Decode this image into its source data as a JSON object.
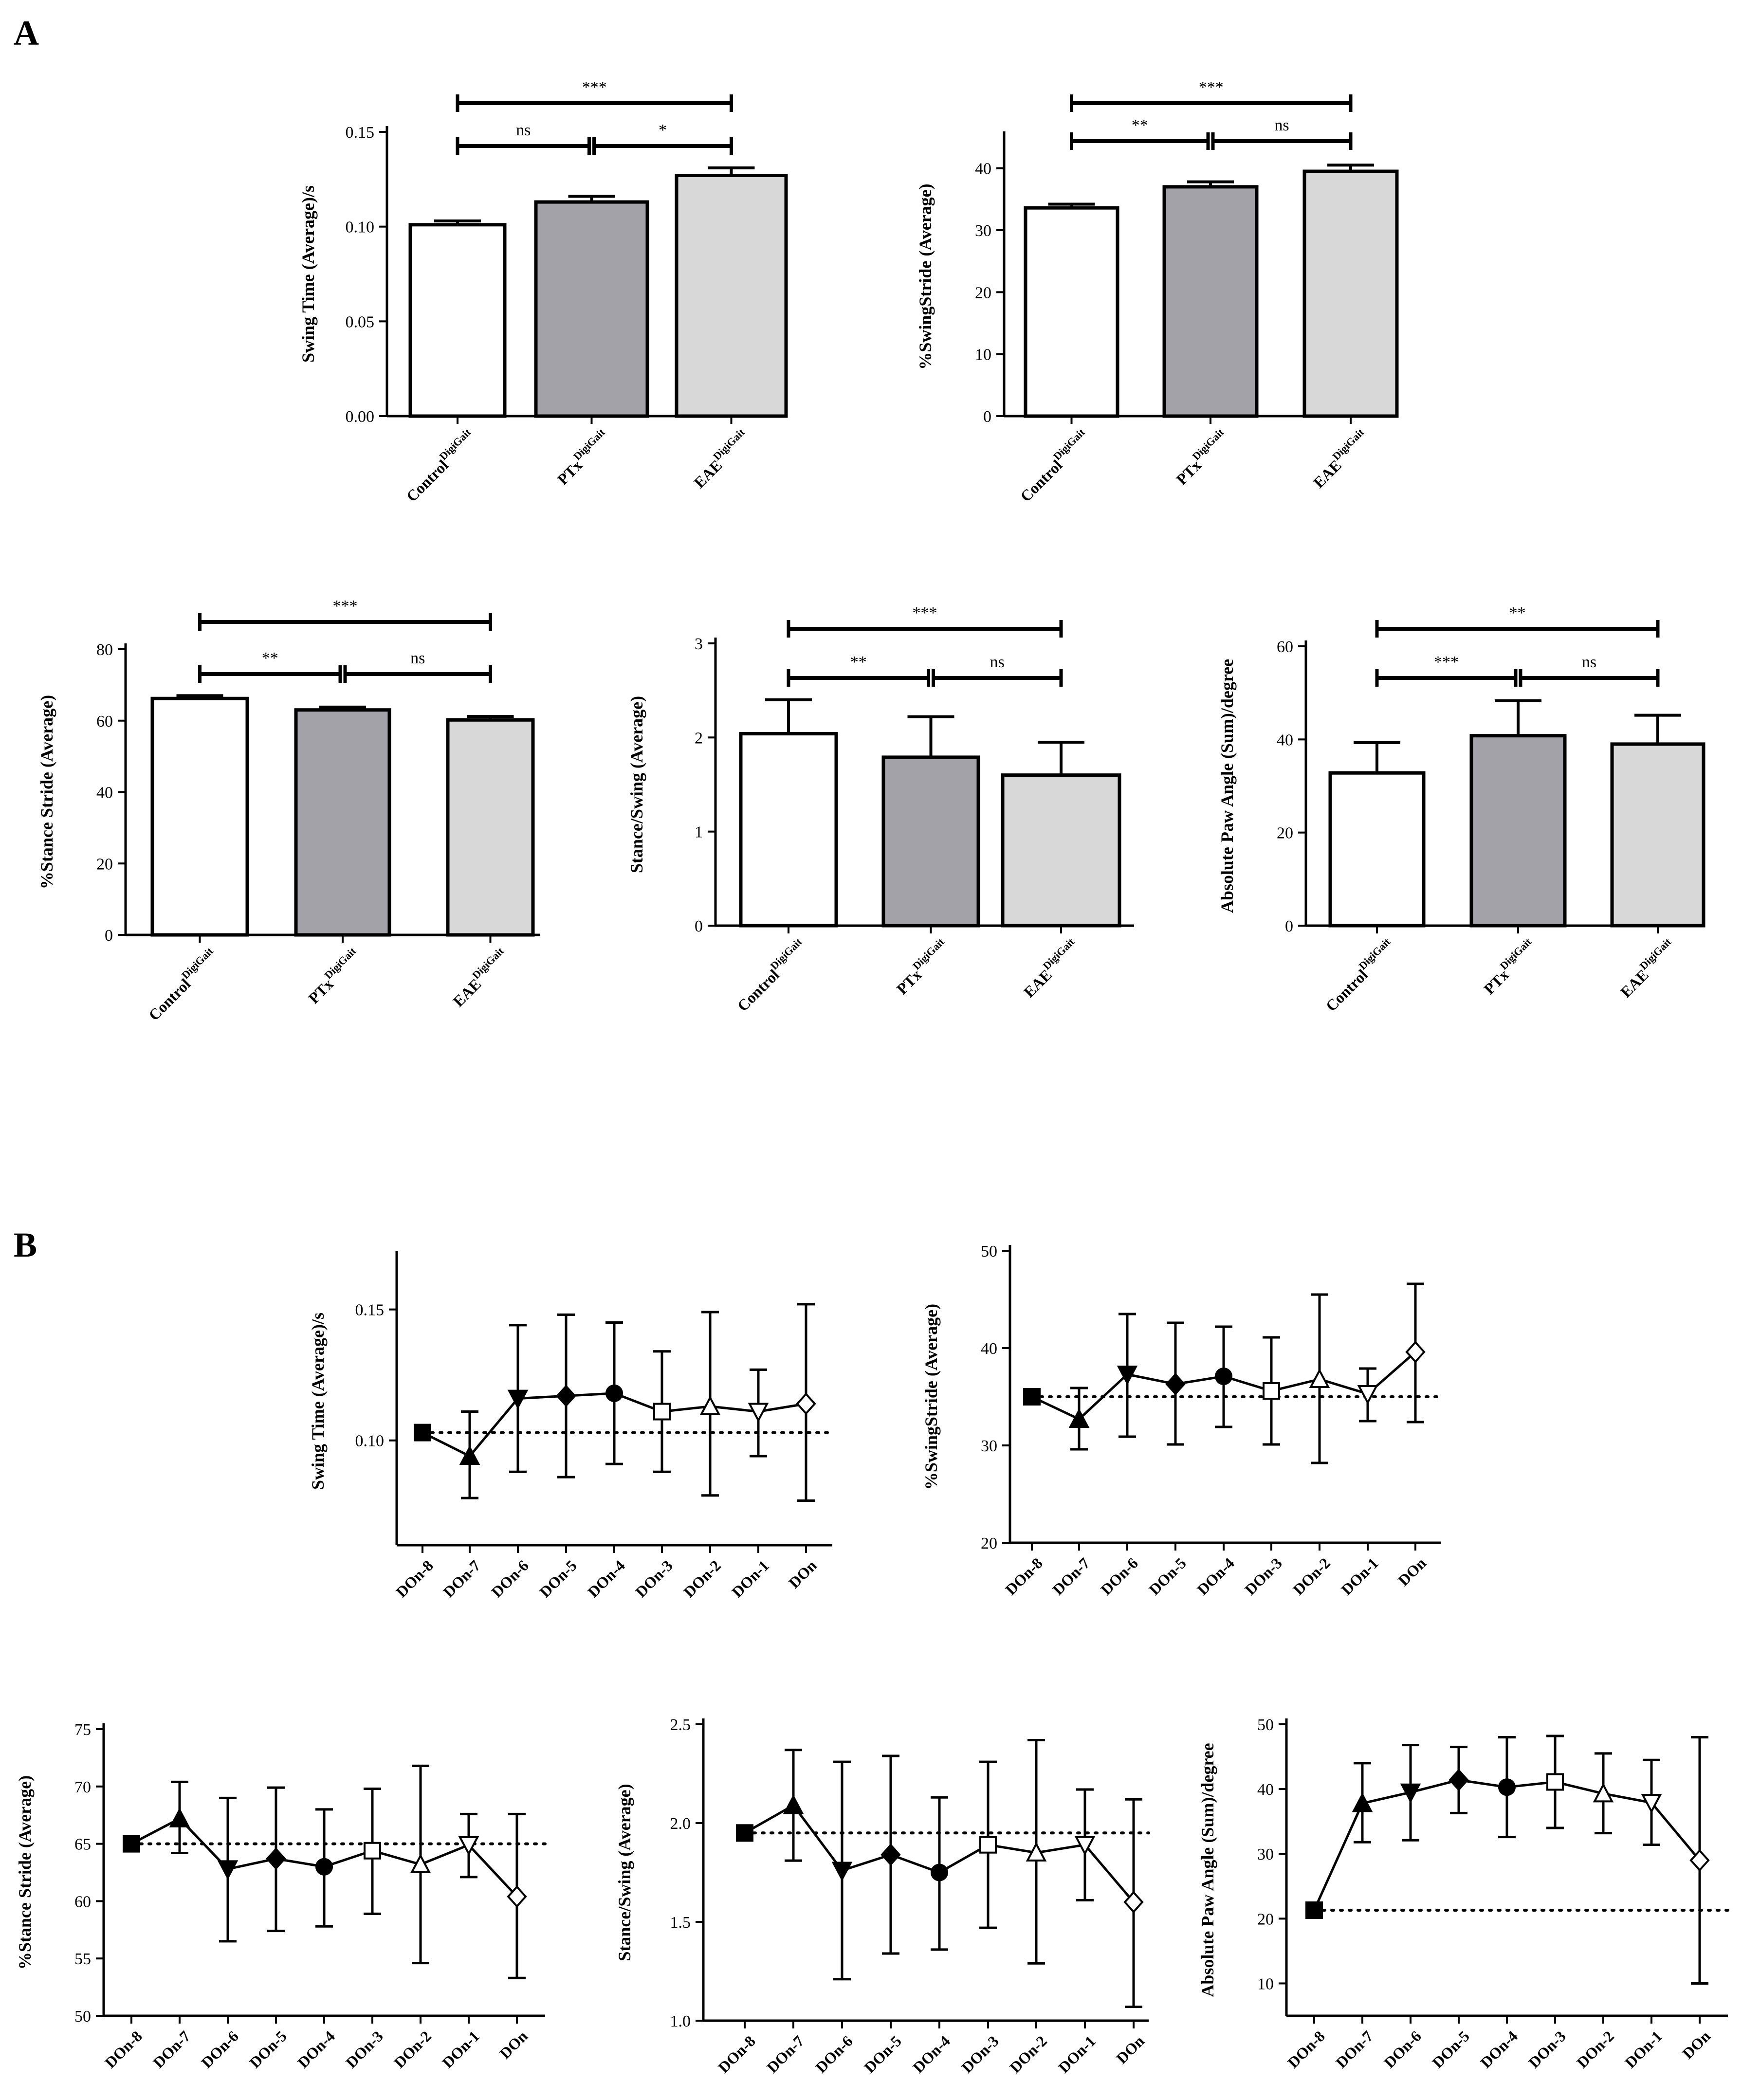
{
  "figure": {
    "panels": [
      "A",
      "B"
    ],
    "colors": {
      "control": "#ffffff",
      "ptx": "#a2a2a8",
      "eae": "#d8d8d8",
      "ink": "#000000"
    }
  },
  "chart_data": [
    {
      "id": "a1",
      "type": "bar",
      "panel": "A",
      "ylabel": "Swing Time (Average)/s",
      "ylim": [
        0,
        0.15
      ],
      "yticks": [
        "0.00",
        "0.05",
        "0.10",
        "0.15"
      ],
      "categories": [
        {
          "base": "Control",
          "sup": "DigiGait"
        },
        {
          "base": "PTx",
          "sup": "DigiGait"
        },
        {
          "base": "EAE",
          "sup": "DigiGait"
        }
      ],
      "values": [
        0.101,
        0.113,
        0.127
      ],
      "errors": [
        0.002,
        0.003,
        0.004
      ],
      "significance": [
        {
          "from": 0,
          "to": 1,
          "label": "ns"
        },
        {
          "from": 1,
          "to": 2,
          "label": "*"
        },
        {
          "from": 0,
          "to": 2,
          "label": "***"
        }
      ]
    },
    {
      "id": "a2",
      "type": "bar",
      "panel": "A",
      "ylabel": "%SwingStride (Average)",
      "ylim": [
        0,
        45
      ],
      "yticks": [
        "0",
        "10",
        "20",
        "30",
        "40"
      ],
      "categories": [
        {
          "base": "Control",
          "sup": "DigiGait"
        },
        {
          "base": "PTx",
          "sup": "DigiGait"
        },
        {
          "base": "EAE",
          "sup": "DigiGait"
        }
      ],
      "values": [
        33.6,
        37.0,
        39.5
      ],
      "errors": [
        0.6,
        0.8,
        1.0
      ],
      "significance": [
        {
          "from": 0,
          "to": 1,
          "label": "**"
        },
        {
          "from": 1,
          "to": 2,
          "label": "ns"
        },
        {
          "from": 0,
          "to": 2,
          "label": "***"
        }
      ]
    },
    {
      "id": "a3",
      "type": "bar",
      "panel": "A",
      "ylabel": "%Stance Stride (Average)",
      "ylim": [
        0,
        80
      ],
      "yticks": [
        "0",
        "20",
        "40",
        "60",
        "80"
      ],
      "categories": [
        {
          "base": "Control",
          "sup": "DigiGait"
        },
        {
          "base": "PTx",
          "sup": "DigiGait"
        },
        {
          "base": "EAE",
          "sup": "DigiGait"
        }
      ],
      "values": [
        66.2,
        63.0,
        60.2
      ],
      "errors": [
        0.8,
        0.8,
        1.0
      ],
      "significance": [
        {
          "from": 0,
          "to": 1,
          "label": "**"
        },
        {
          "from": 1,
          "to": 2,
          "label": "ns"
        },
        {
          "from": 0,
          "to": 2,
          "label": "***"
        }
      ]
    },
    {
      "id": "a4",
      "type": "bar",
      "panel": "A",
      "ylabel": "Stance/Swing (Average)",
      "ylim": [
        0,
        3
      ],
      "yticks": [
        "0",
        "1",
        "2",
        "3"
      ],
      "categories": [
        {
          "base": "Control",
          "sup": "DigiGait"
        },
        {
          "base": "PTx",
          "sup": "DigiGait"
        },
        {
          "base": "EAE",
          "sup": "DigiGait"
        }
      ],
      "values": [
        2.04,
        1.79,
        1.6
      ],
      "errors": [
        0.36,
        0.43,
        0.35
      ],
      "significance": [
        {
          "from": 0,
          "to": 1,
          "label": "**"
        },
        {
          "from": 1,
          "to": 2,
          "label": "ns"
        },
        {
          "from": 0,
          "to": 2,
          "label": "***"
        }
      ]
    },
    {
      "id": "a5",
      "type": "bar",
      "panel": "A",
      "ylabel": "Absolute Paw Angle (Sum)/degree",
      "ylim": [
        0,
        60
      ],
      "yticks": [
        "0",
        "20",
        "40",
        "60"
      ],
      "categories": [
        {
          "base": "Control",
          "sup": "DigiGait"
        },
        {
          "base": "PTx",
          "sup": "DigiGait"
        },
        {
          "base": "EAE",
          "sup": "DigiGait"
        }
      ],
      "values": [
        32.8,
        40.8,
        39.0
      ],
      "errors": [
        6.5,
        7.5,
        6.2
      ],
      "significance": [
        {
          "from": 0,
          "to": 1,
          "label": "***"
        },
        {
          "from": 1,
          "to": 2,
          "label": "ns"
        },
        {
          "from": 0,
          "to": 2,
          "label": "**"
        }
      ]
    },
    {
      "id": "b1",
      "type": "line",
      "panel": "B",
      "ylabel": "Swing Time (Average)/s",
      "ylim": [
        0.06,
        0.17
      ],
      "yticks": [
        {
          "v": 0.1,
          "label": "0.10"
        },
        {
          "v": 0.15,
          "label": "0.15"
        }
      ],
      "categories": [
        "DOn-8",
        "DOn-7",
        "DOn-6",
        "DOn-5",
        "DOn-4",
        "DOn-3",
        "DOn-2",
        "DOn-1",
        "DOn"
      ],
      "values": [
        0.103,
        0.094,
        0.116,
        0.117,
        0.118,
        0.111,
        0.113,
        0.111,
        0.114
      ],
      "err_upper": [
        0.103,
        0.111,
        0.144,
        0.148,
        0.145,
        0.134,
        0.149,
        0.127,
        0.152
      ],
      "err_lower": [
        0.103,
        0.078,
        0.088,
        0.086,
        0.091,
        0.088,
        0.079,
        0.094,
        0.077
      ],
      "markers": [
        "square",
        "triangle-up",
        "triangle-down",
        "diamond",
        "circle",
        "square-open",
        "triangle-open",
        "triangle-down-open",
        "diamond-open"
      ],
      "baseline": 0.103
    },
    {
      "id": "b2",
      "type": "line",
      "panel": "B",
      "ylabel": "%SwingStride (Average)",
      "ylim": [
        20,
        50
      ],
      "yticks": [
        {
          "v": 20,
          "label": "20"
        },
        {
          "v": 30,
          "label": "30"
        },
        {
          "v": 40,
          "label": "40"
        },
        {
          "v": 50,
          "label": "50"
        }
      ],
      "categories": [
        "DOn-8",
        "DOn-7",
        "DOn-6",
        "DOn-5",
        "DOn-4",
        "DOn-3",
        "DOn-2",
        "DOn-1",
        "DOn"
      ],
      "values": [
        35.0,
        32.7,
        37.3,
        36.3,
        37.1,
        35.6,
        36.8,
        35.3,
        39.6
      ],
      "err_upper": [
        35.0,
        35.9,
        43.5,
        42.6,
        42.2,
        41.1,
        45.5,
        37.9,
        46.6
      ],
      "err_lower": [
        35.0,
        29.6,
        30.9,
        30.1,
        31.9,
        30.1,
        28.2,
        32.5,
        32.4
      ],
      "markers": [
        "square",
        "triangle-up",
        "triangle-down",
        "diamond",
        "circle",
        "square-open",
        "triangle-open",
        "triangle-down-open",
        "diamond-open"
      ],
      "baseline": 35.0
    },
    {
      "id": "b3",
      "type": "line",
      "panel": "B",
      "ylabel": "%Stance Stride (Average)",
      "ylim": [
        50,
        75
      ],
      "yticks": [
        {
          "v": 50,
          "label": "50"
        },
        {
          "v": 55,
          "label": "55"
        },
        {
          "v": 60,
          "label": "60"
        },
        {
          "v": 65,
          "label": "65"
        },
        {
          "v": 70,
          "label": "70"
        },
        {
          "v": 75,
          "label": "75"
        }
      ],
      "categories": [
        "DOn-8",
        "DOn-7",
        "DOn-6",
        "DOn-5",
        "DOn-4",
        "DOn-3",
        "DOn-2",
        "DOn-1",
        "DOn"
      ],
      "values": [
        65.0,
        67.2,
        62.8,
        63.7,
        63.0,
        64.4,
        63.2,
        64.9,
        60.4
      ],
      "err_upper": [
        65.0,
        70.4,
        69.0,
        69.9,
        68.0,
        69.8,
        71.8,
        67.6,
        67.6
      ],
      "err_lower": [
        65.0,
        64.2,
        56.5,
        57.4,
        57.8,
        58.9,
        54.6,
        62.1,
        53.3
      ],
      "markers": [
        "square",
        "triangle-up",
        "triangle-down",
        "diamond",
        "circle",
        "square-open",
        "triangle-open",
        "triangle-down-open",
        "diamond-open"
      ],
      "baseline": 65.0
    },
    {
      "id": "b4",
      "type": "line",
      "panel": "B",
      "ylabel": "Stance/Swing (Average)",
      "ylim": [
        1.0,
        2.5
      ],
      "yticks": [
        {
          "v": 1.0,
          "label": "1.0"
        },
        {
          "v": 1.5,
          "label": "1.5"
        },
        {
          "v": 2.0,
          "label": "2.0"
        },
        {
          "v": 2.5,
          "label": "2.5"
        }
      ],
      "categories": [
        "DOn-8",
        "DOn-7",
        "DOn-6",
        "DOn-5",
        "DOn-4",
        "DOn-3",
        "DOn-2",
        "DOn-1",
        "DOn"
      ],
      "values": [
        1.95,
        2.09,
        1.76,
        1.84,
        1.75,
        1.89,
        1.85,
        1.89,
        1.6
      ],
      "err_upper": [
        1.95,
        2.37,
        2.31,
        2.34,
        2.13,
        2.31,
        2.42,
        2.17,
        2.12
      ],
      "err_lower": [
        1.95,
        1.81,
        1.21,
        1.34,
        1.36,
        1.47,
        1.29,
        1.61,
        1.07
      ],
      "markers": [
        "square",
        "triangle-up",
        "triangle-down",
        "diamond",
        "circle",
        "square-open",
        "triangle-open",
        "triangle-down-open",
        "diamond-open"
      ],
      "baseline": 1.95
    },
    {
      "id": "b5",
      "type": "line",
      "panel": "B",
      "ylabel": "Absolute Paw Angle (Sum)/degree",
      "ylim": [
        5,
        50
      ],
      "yticks": [
        {
          "v": 10,
          "label": "10"
        },
        {
          "v": 20,
          "label": "20"
        },
        {
          "v": 30,
          "label": "30"
        },
        {
          "v": 40,
          "label": "40"
        },
        {
          "v": 50,
          "label": "50"
        }
      ],
      "categories": [
        "DOn-8",
        "DOn-7",
        "DOn-6",
        "DOn-5",
        "DOn-4",
        "DOn-3",
        "DOn-2",
        "DOn-1",
        "DOn"
      ],
      "values": [
        21.3,
        37.8,
        39.5,
        41.4,
        40.3,
        41.1,
        39.3,
        37.9,
        29.0
      ],
      "err_upper": [
        21.3,
        44.0,
        46.8,
        46.5,
        48.0,
        48.2,
        45.5,
        44.5,
        48.0
      ],
      "err_lower": [
        21.3,
        31.8,
        32.1,
        36.3,
        32.6,
        34.0,
        33.2,
        31.4,
        10.0
      ],
      "markers": [
        "square",
        "triangle-up",
        "triangle-down",
        "diamond",
        "circle",
        "square-open",
        "triangle-open",
        "triangle-down-open",
        "diamond-open"
      ],
      "baseline": 21.3
    }
  ]
}
